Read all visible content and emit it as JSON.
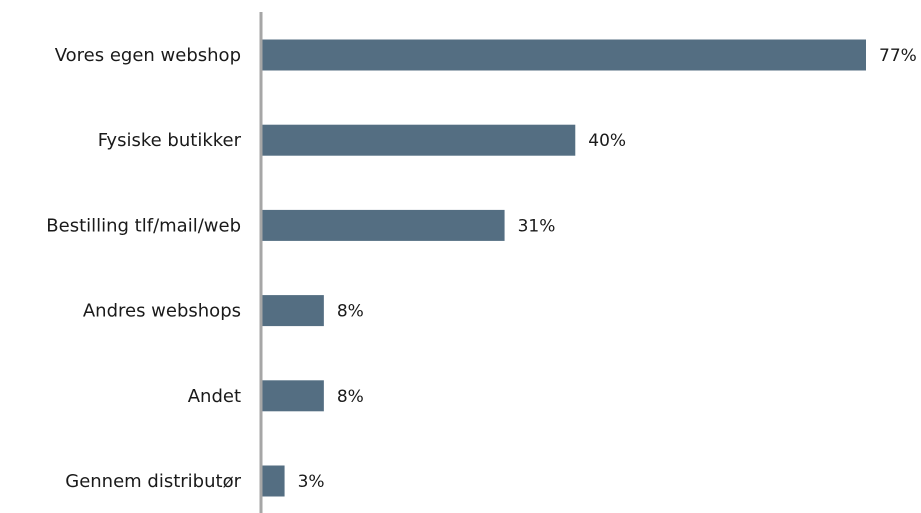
{
  "chart_data": {
    "type": "bar",
    "orientation": "horizontal",
    "categories": [
      "Vores egen webshop",
      "Fysiske butikker",
      "Bestilling tlf/mail/web",
      "Andres webshops",
      "Andet",
      "Gennem distributør"
    ],
    "values": [
      77,
      40,
      31,
      8,
      8,
      3
    ],
    "value_labels": [
      "77%",
      "40%",
      "31%",
      "8%",
      "8%",
      "3%"
    ],
    "xlim": [
      0,
      77
    ],
    "grid": false,
    "colors": {
      "bar": "#546e82",
      "axis": "#a6a6a6",
      "text": "#1a1a1a"
    }
  }
}
